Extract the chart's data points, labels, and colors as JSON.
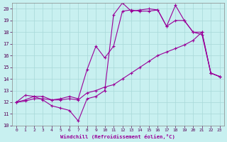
{
  "xlabel": "Windchill (Refroidissement éolien,°C)",
  "background_color": "#c8f0f0",
  "grid_color": "#a8d8d8",
  "line_color": "#990099",
  "xlim": [
    -0.5,
    23.5
  ],
  "ylim": [
    10,
    20.5
  ],
  "yticks": [
    10,
    11,
    12,
    13,
    14,
    15,
    16,
    17,
    18,
    19,
    20
  ],
  "xticks": [
    0,
    1,
    2,
    3,
    4,
    5,
    6,
    7,
    8,
    9,
    10,
    11,
    12,
    13,
    14,
    15,
    16,
    17,
    18,
    19,
    20,
    21,
    22,
    23
  ],
  "series": [
    {
      "x": [
        0,
        1,
        2,
        3,
        4,
        5,
        6,
        7,
        8,
        9,
        10,
        11,
        12,
        13,
        14,
        15,
        16,
        17,
        18,
        19,
        20,
        21,
        22,
        23
      ],
      "y": [
        12,
        12.6,
        12.5,
        12.2,
        11.7,
        11.5,
        11.3,
        10.4,
        12.3,
        12.5,
        13.0,
        19.5,
        20.5,
        19.8,
        19.9,
        20.0,
        19.9,
        18.5,
        20.3,
        19.0,
        18.0,
        17.8,
        14.5,
        14.2
      ]
    },
    {
      "x": [
        0,
        1,
        2,
        3,
        4,
        5,
        6,
        7,
        8,
        9,
        10,
        11,
        12,
        13,
        14,
        15,
        16,
        17,
        18,
        19,
        20,
        21,
        22,
        23
      ],
      "y": [
        12,
        12.2,
        12.5,
        12.5,
        12.2,
        12.3,
        12.5,
        12.3,
        14.8,
        16.8,
        15.8,
        16.8,
        19.8,
        19.9,
        19.8,
        19.8,
        19.9,
        18.5,
        19.0,
        19.0,
        18.0,
        18.0,
        14.5,
        14.2
      ]
    },
    {
      "x": [
        0,
        1,
        2,
        3,
        4,
        5,
        6,
        7,
        8,
        9,
        10,
        11,
        12,
        13,
        14,
        15,
        16,
        17,
        18,
        19,
        20,
        21,
        22,
        23
      ],
      "y": [
        12,
        12.1,
        12.3,
        12.3,
        12.2,
        12.2,
        12.3,
        12.2,
        12.8,
        13.0,
        13.3,
        13.5,
        14.0,
        14.5,
        15.0,
        15.5,
        16.0,
        16.3,
        16.6,
        16.9,
        17.3,
        18.0,
        14.5,
        14.2
      ]
    }
  ]
}
